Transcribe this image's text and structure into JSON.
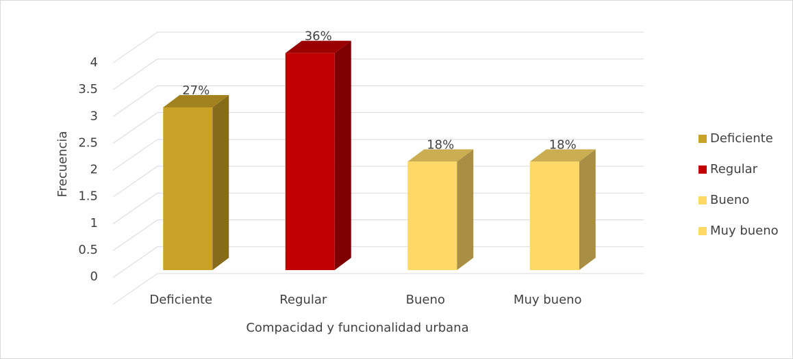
{
  "chart_data": {
    "type": "bar3d",
    "y_label": "Frecuencia",
    "x_label": "Compacidad y funcionalidad urbana",
    "categories": [
      "Deficiente",
      "Regular",
      "Bueno",
      "Muy bueno"
    ],
    "values": [
      3,
      4,
      2,
      2
    ],
    "value_labels": [
      "27%",
      "36%",
      "18%",
      "18%"
    ],
    "colors": [
      "#c9a227",
      "#c00000",
      "#ffd966",
      "#ffd966"
    ],
    "ylim": [
      0,
      4.5
    ],
    "yticks": [
      0,
      0.5,
      1,
      1.5,
      2,
      2.5,
      3,
      3.5,
      4
    ],
    "grid": true,
    "legend": "right"
  }
}
